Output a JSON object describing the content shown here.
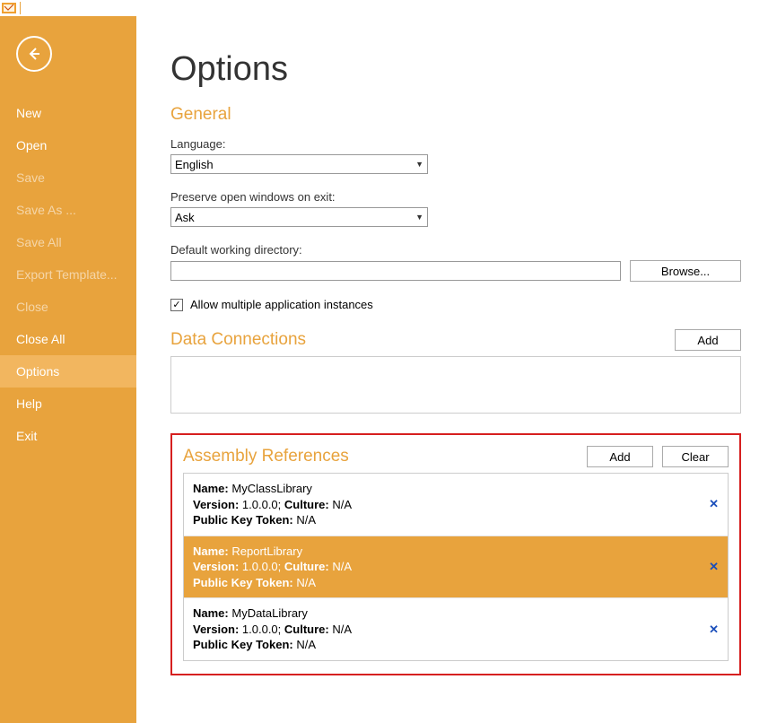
{
  "colors": {
    "accent": "#e8a33d",
    "accent_light": "#f2b65f",
    "highlight_border": "#d61f1f",
    "remove_icon": "#1b4fbb"
  },
  "sidebar": {
    "items": [
      {
        "label": "New",
        "disabled": false,
        "selected": false
      },
      {
        "label": "Open",
        "disabled": false,
        "selected": false
      },
      {
        "label": "Save",
        "disabled": true,
        "selected": false
      },
      {
        "label": "Save As ...",
        "disabled": true,
        "selected": false
      },
      {
        "label": "Save All",
        "disabled": true,
        "selected": false
      },
      {
        "label": "Export Template...",
        "disabled": true,
        "selected": false
      },
      {
        "label": "Close",
        "disabled": true,
        "selected": false
      },
      {
        "label": "Close All",
        "disabled": false,
        "selected": false
      },
      {
        "label": "Options",
        "disabled": false,
        "selected": true
      },
      {
        "label": "Help",
        "disabled": false,
        "selected": false
      },
      {
        "label": "Exit",
        "disabled": false,
        "selected": false
      }
    ]
  },
  "page": {
    "title": "Options"
  },
  "general": {
    "heading": "General",
    "language_label": "Language:",
    "language_value": "English",
    "preserve_label": "Preserve open windows on exit:",
    "preserve_value": "Ask",
    "workdir_label": "Default working directory:",
    "workdir_value": "",
    "browse_label": "Browse...",
    "allow_multiple_label": "Allow multiple application instances",
    "allow_multiple_checked": true
  },
  "data_connections": {
    "heading": "Data Connections",
    "add_label": "Add"
  },
  "assembly_refs": {
    "heading": "Assembly References",
    "add_label": "Add",
    "clear_label": "Clear",
    "labels": {
      "name": "Name:",
      "version": "Version:",
      "culture": "Culture:",
      "pkt": "Public Key Token:"
    },
    "items": [
      {
        "name": "MyClassLibrary",
        "version": "1.0.0.0",
        "culture": "N/A",
        "public_key_token": "N/A",
        "selected": false
      },
      {
        "name": "ReportLibrary",
        "version": "1.0.0.0",
        "culture": "N/A",
        "public_key_token": "N/A",
        "selected": true
      },
      {
        "name": "MyDataLibrary",
        "version": "1.0.0.0",
        "culture": "N/A",
        "public_key_token": "N/A",
        "selected": false
      }
    ]
  }
}
